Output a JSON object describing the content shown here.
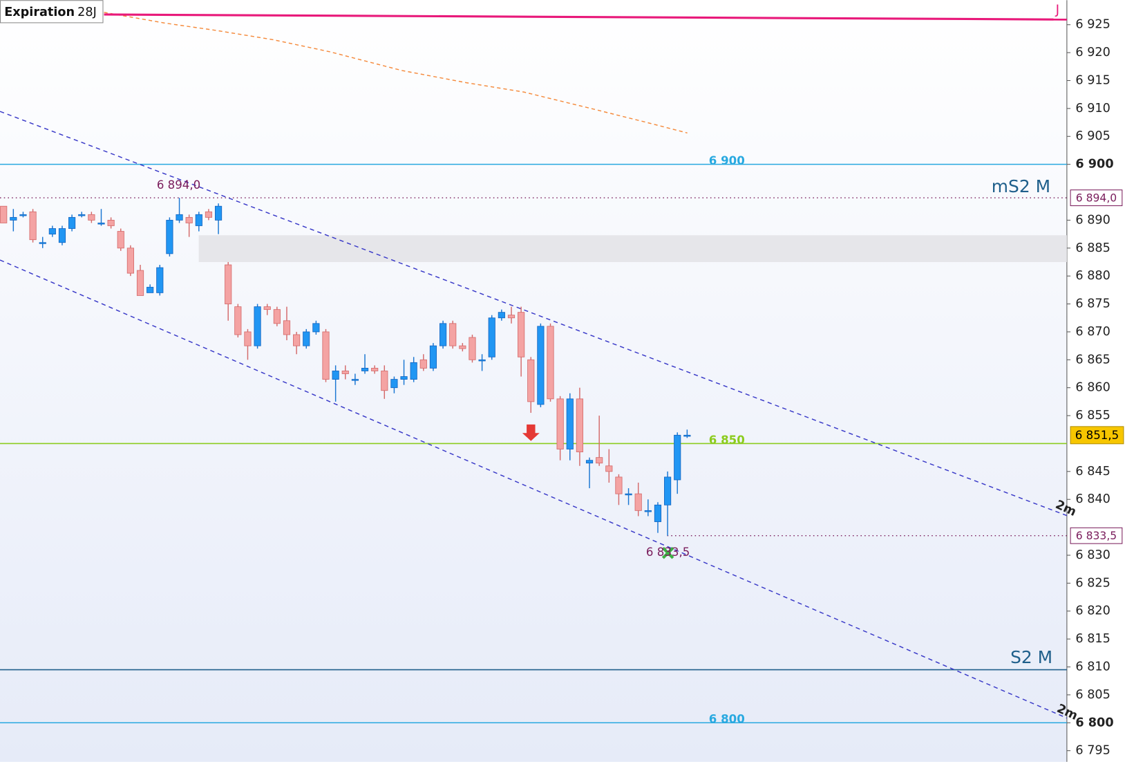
{
  "chart_data": {
    "type": "candlestick",
    "open": [
      6892.5,
      6890,
      6891,
      6891.5,
      6886,
      6887.5,
      6886,
      6888.5,
      6891,
      6891,
      6889.5,
      6890,
      6888,
      6885,
      6881,
      6877,
      6877,
      6884,
      6890,
      6890.5,
      6889,
      6891.5,
      6890,
      6882,
      6874.5,
      6870,
      6867.5,
      6874.5,
      6874,
      6872,
      6869.5,
      6867.5,
      6870,
      6870,
      6861.5,
      6863,
      6861.5,
      6863,
      6863.5,
      6863,
      6860,
      6861.5,
      6861.5,
      6865,
      6863.5,
      6867.5,
      6871.5,
      6867.5,
      6869,
      6865,
      6865.5,
      6872.5,
      6873,
      6873.5,
      6865,
      6857,
      6871,
      6858,
      6849,
      6858,
      6846.5,
      6847.5,
      6846,
      6844,
      6841,
      6841,
      6838,
      6836,
      6839,
      6843.5,
      6851.5
    ],
    "high": [
      6892.5,
      6892,
      6891.5,
      6892,
      6887,
      6889,
      6889,
      6891,
      6891.5,
      6891.5,
      6892,
      6890.5,
      6888.5,
      6885.5,
      6882,
      6878.5,
      6882,
      6890.5,
      6894,
      6891,
      6891.5,
      6892,
      6893,
      6882.5,
      6875,
      6870.5,
      6875,
      6875,
      6874.5,
      6874.5,
      6870,
      6870.5,
      6872,
      6870.5,
      6864,
      6864,
      6862.5,
      6866,
      6864,
      6864,
      6862,
      6865,
      6865.5,
      6866,
      6868,
      6872,
      6872,
      6868,
      6869.5,
      6866,
      6873,
      6874,
      6874.5,
      6874.5,
      6865.5,
      6871.5,
      6871.5,
      6858.5,
      6859,
      6860,
      6847.5,
      6855,
      6849,
      6844.5,
      6842,
      6843,
      6840,
      6839.5,
      6845,
      6852,
      6852.5
    ],
    "low": [
      6889.5,
      6888,
      6890.5,
      6886,
      6885,
      6887,
      6885.5,
      6888,
      6890.5,
      6889.5,
      6889,
      6888.5,
      6884.5,
      6880,
      6876.5,
      6877,
      6876.5,
      6883.5,
      6889.5,
      6887,
      6888,
      6890,
      6887.5,
      6872,
      6869,
      6865,
      6867,
      6873,
      6871,
      6868.5,
      6866,
      6867,
      6869.5,
      6861,
      6857.5,
      6861.5,
      6860.5,
      6862.5,
      6862.5,
      6858,
      6859,
      6860.5,
      6861,
      6863,
      6863,
      6867,
      6867,
      6866.5,
      6864.5,
      6863,
      6865,
      6872,
      6871.5,
      6862,
      6855.5,
      6856.5,
      6857.5,
      6847,
      6847,
      6846,
      6842,
      6846,
      6843,
      6839,
      6839,
      6837,
      6837,
      6834,
      6833.5,
      6841,
      6851
    ],
    "close": [
      6889.5,
      6890.5,
      6891,
      6886.5,
      6886,
      6888.5,
      6888.5,
      6890.5,
      6891,
      6890,
      6889.5,
      6889,
      6885,
      6880.5,
      6876.5,
      6878,
      6881.5,
      6890,
      6891,
      6889.5,
      6891,
      6890.5,
      6892.5,
      6875,
      6869.5,
      6867.5,
      6874.5,
      6874,
      6871.5,
      6869.5,
      6867.5,
      6870,
      6871.5,
      6861.5,
      6863,
      6862.5,
      6861.5,
      6863.5,
      6863,
      6859.5,
      6861.5,
      6862,
      6864.5,
      6863.5,
      6867.5,
      6871.5,
      6867.5,
      6867,
      6865,
      6865,
      6872.5,
      6873.5,
      6872.5,
      6865.5,
      6857.5,
      6871,
      6858,
      6849,
      6858,
      6848.5,
      6847,
      6846.5,
      6845,
      6841,
      6841,
      6838,
      6838,
      6839,
      6844,
      6851.5,
      6851.5
    ],
    "up_color": "#2196f3",
    "down_color": "#f4a3a3",
    "ylim": [
      6793,
      6929.4
    ],
    "yticks": [
      {
        "value": 6795,
        "label": "6 795"
      },
      {
        "value": 6800,
        "label": "6 800"
      },
      {
        "value": 6805,
        "label": "6 805"
      },
      {
        "value": 6810,
        "label": "6 810"
      },
      {
        "value": 6815,
        "label": "6 815"
      },
      {
        "value": 6820,
        "label": "6 820"
      },
      {
        "value": 6825,
        "label": "6 825"
      },
      {
        "value": 6830,
        "label": "6 830"
      },
      {
        "value": 6840,
        "label": "6 840"
      },
      {
        "value": 6845,
        "label": "6 845"
      },
      {
        "value": 6855,
        "label": "6 855"
      },
      {
        "value": 6860,
        "label": "6 860"
      },
      {
        "value": 6865,
        "label": "6 865"
      },
      {
        "value": 6870,
        "label": "6 870"
      },
      {
        "value": 6875,
        "label": "6 875"
      },
      {
        "value": 6880,
        "label": "6 880"
      },
      {
        "value": 6885,
        "label": "6 885"
      },
      {
        "value": 6890,
        "label": "6 890"
      },
      {
        "value": 6900,
        "label": "6 900"
      },
      {
        "value": 6905,
        "label": "6 905"
      },
      {
        "value": 6910,
        "label": "6 910"
      },
      {
        "value": 6915,
        "label": "6 915"
      },
      {
        "value": 6920,
        "label": "6 920"
      },
      {
        "value": 6925,
        "label": "6 925"
      }
    ],
    "levels": [
      {
        "value": 6900,
        "label": "6 900",
        "color": "#29a9e0"
      },
      {
        "value": 6850,
        "label": "6 850",
        "color": "#8ccc1e"
      },
      {
        "value": 6800,
        "label": "6 800",
        "color": "#29a9e0"
      },
      {
        "value": 6809.5,
        "label": "S2 M",
        "color": "#1f5f8b"
      }
    ],
    "marks": [
      {
        "value": 6894,
        "label": "6 894,0"
      },
      {
        "value": 6833.5,
        "label": "6 833,5"
      }
    ],
    "last": {
      "value": 6851.5,
      "label": "6 851,5"
    },
    "zone": [
      6882.5,
      6887.3
    ],
    "annotations": {
      "expiration": "Expiration",
      "expiry": "28J",
      "pivot": "mS2 M",
      "event": "J",
      "timeframe": [
        "2m",
        "2m"
      ]
    }
  }
}
